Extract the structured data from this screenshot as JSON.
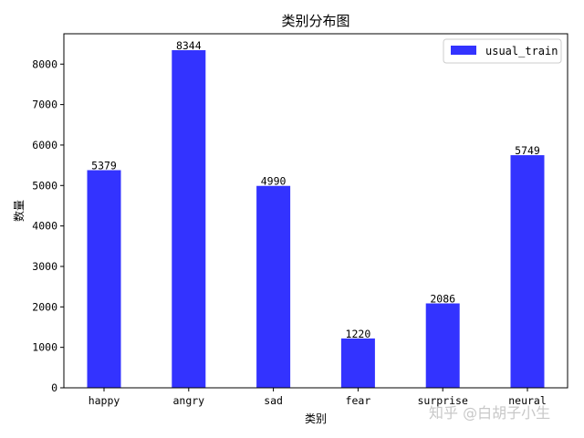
{
  "chart_data": {
    "type": "bar",
    "title": "类别分布图",
    "xlabel": "类别",
    "ylabel": "数量",
    "categories": [
      "happy",
      "angry",
      "sad",
      "fear",
      "surprise",
      "neural"
    ],
    "series": [
      {
        "name": "usual_train",
        "values": [
          5379,
          8344,
          4990,
          1220,
          2086,
          5749
        ],
        "color": "#3333ff"
      }
    ],
    "ylim": [
      0,
      8750
    ],
    "yticks": [
      0,
      1000,
      2000,
      3000,
      4000,
      5000,
      6000,
      7000,
      8000
    ],
    "legend_position": "top-right",
    "grid": false
  },
  "watermark": "知乎 @白胡子小生"
}
